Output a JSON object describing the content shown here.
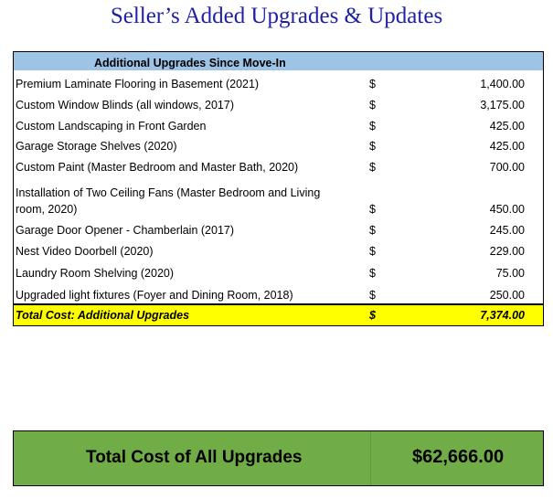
{
  "title": "Seller’s Added Upgrades & Updates",
  "table": {
    "header": "Additional Upgrades Since Move-In",
    "rows": [
      {
        "desc": "Premium Laminate Flooring in Basement (2021)",
        "dollar": "$",
        "amount": "1,400.00"
      },
      {
        "desc": "Custom Window Blinds (all windows, 2017)",
        "dollar": "$",
        "amount": "3,175.00"
      },
      {
        "desc": "Custom Landscaping in Front Garden",
        "dollar": "$",
        "amount": "425.00"
      },
      {
        "desc": "Garage Storage Shelves (2020)",
        "dollar": "$",
        "amount": "425.00"
      },
      {
        "desc": "Custom Paint (Master Bedroom and Master Bath, 2020)",
        "dollar": "$",
        "amount": "700.00"
      },
      {
        "desc_line1": "Installation of Two Ceiling Fans (Master Bedroom and Living",
        "desc_line2": "room, 2020)",
        "dollar": "$",
        "amount": "450.00"
      },
      {
        "desc": "Garage Door Opener - Chamberlain (2017)",
        "dollar": "$",
        "amount": "245.00"
      },
      {
        "desc": "Nest Video Doorbell (2020)",
        "dollar": "$",
        "amount": "229.00"
      },
      {
        "desc": "Laundry Room Shelving (2020)",
        "dollar": "$",
        "amount": "75.00"
      },
      {
        "desc": "Upgraded light fixtures (Foyer and Dining Room, 2018)",
        "dollar": "$",
        "amount": "250.00"
      }
    ],
    "total": {
      "label": "Total Cost: Additional Upgrades",
      "dollar": "$",
      "amount": "7,374.00"
    }
  },
  "summary": {
    "label": "Total Cost of All Upgrades",
    "value": "$62,666.00"
  }
}
